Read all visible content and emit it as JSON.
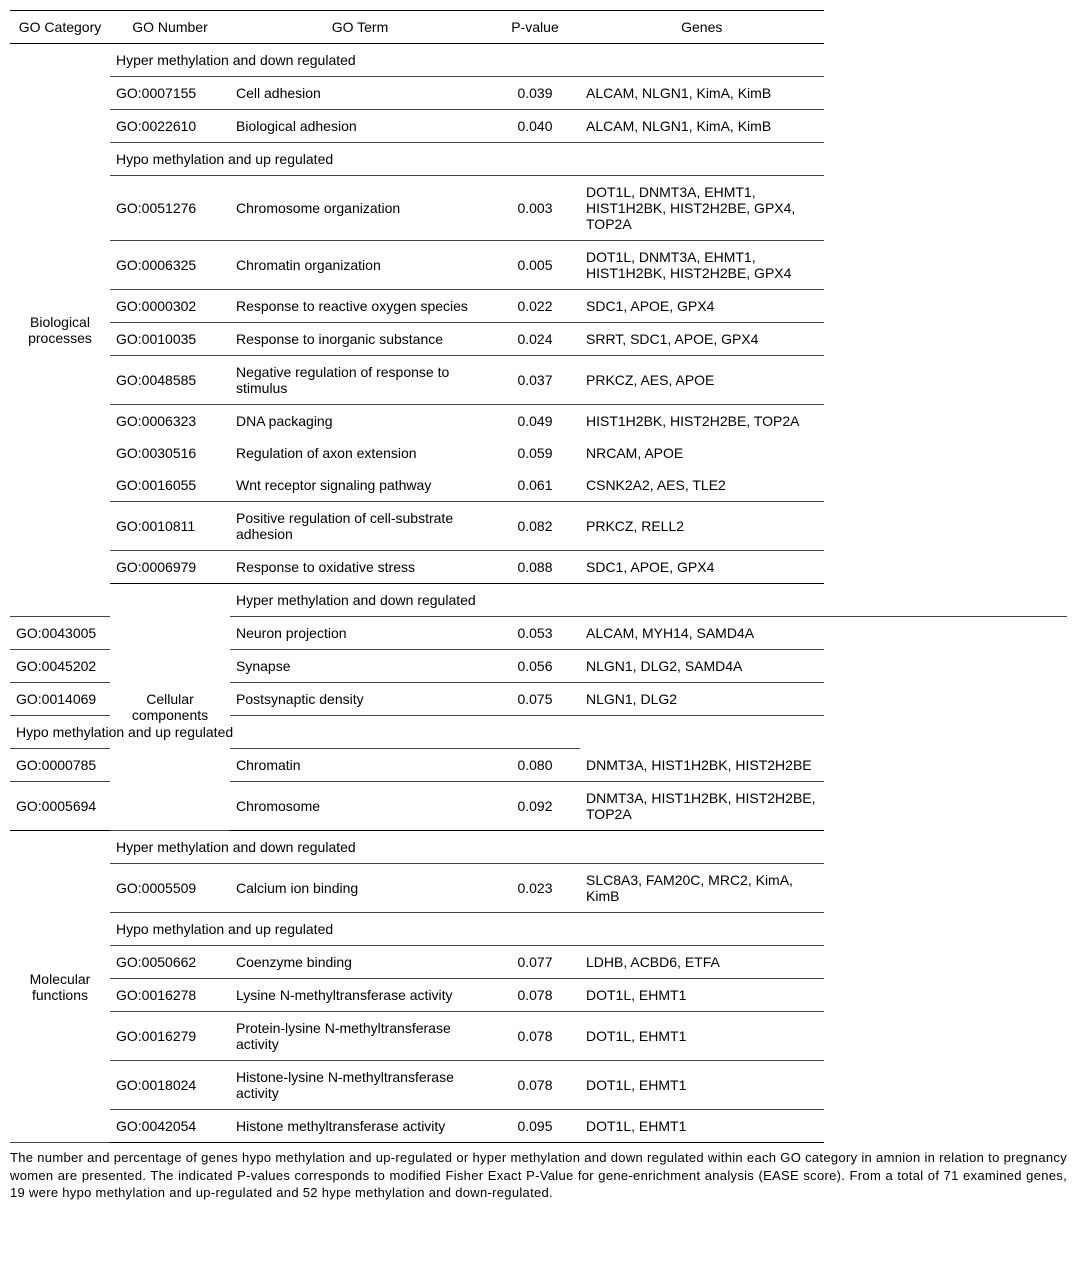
{
  "columns": {
    "c1": "GO Category",
    "c2": "GO Number",
    "c3": "GO Term",
    "c4": "P-value",
    "c5": "Genes"
  },
  "subheaders": {
    "hyper": "Hyper methylation and down regulated",
    "hypo": "Hypo methylation and up regulated"
  },
  "categories": {
    "bio": "Biological processes",
    "cell": "Cellular components",
    "mol": "Molecular functions"
  },
  "rows": {
    "r1": {
      "num": "GO:0007155",
      "term": "Cell adhesion",
      "p": "0.039",
      "genes": "ALCAM, NLGN1, KimA, KimB"
    },
    "r2": {
      "num": "GO:0022610",
      "term": "Biological adhesion",
      "p": "0.040",
      "genes": "ALCAM, NLGN1, KimA, KimB"
    },
    "r3": {
      "num": "GO:0051276",
      "term": "Chromosome organization",
      "p": "0.003",
      "genes": "DOT1L, DNMT3A, EHMT1, HIST1H2BK, HIST2H2BE, GPX4, TOP2A"
    },
    "r4": {
      "num": "GO:0006325",
      "term": "Chromatin organization",
      "p": "0.005",
      "genes": "DOT1L, DNMT3A, EHMT1, HIST1H2BK, HIST2H2BE, GPX4"
    },
    "r5": {
      "num": "GO:0000302",
      "term": "Response to reactive oxygen species",
      "p": "0.022",
      "genes": "SDC1, APOE, GPX4"
    },
    "r6": {
      "num": "GO:0010035",
      "term": "Response to inorganic substance",
      "p": "0.024",
      "genes": "SRRT, SDC1, APOE, GPX4"
    },
    "r7": {
      "num": "GO:0048585",
      "term": "Negative regulation of response to stimulus",
      "p": "0.037",
      "genes": "PRKCZ, AES, APOE"
    },
    "r8": {
      "num": "GO:0006323",
      "term": "DNA packaging",
      "p": "0.049",
      "genes": "HIST1H2BK, HIST2H2BE, TOP2A"
    },
    "r9": {
      "num": "GO:0030516",
      "term": "Regulation of axon extension",
      "p": "0.059",
      "genes": "NRCAM, APOE"
    },
    "r10": {
      "num": "GO:0016055",
      "term": "Wnt receptor signaling pathway",
      "p": "0.061",
      "genes": "CSNK2A2, AES, TLE2"
    },
    "r11": {
      "num": "GO:0010811",
      "term": "Positive regulation of cell-substrate adhesion",
      "p": "0.082",
      "genes": "PRKCZ, RELL2"
    },
    "r12": {
      "num": "GO:0006979",
      "term": "Response to oxidative stress",
      "p": "0.088",
      "genes": "SDC1, APOE, GPX4"
    },
    "r13": {
      "num": "GO:0043005",
      "term": "Neuron projection",
      "p": "0.053",
      "genes": "ALCAM, MYH14, SAMD4A"
    },
    "r14": {
      "num": "GO:0045202",
      "term": "Synapse",
      "p": "0.056",
      "genes": "NLGN1, DLG2, SAMD4A"
    },
    "r15": {
      "num": "GO:0014069",
      "term": "Postsynaptic density",
      "p": "0.075",
      "genes": "NLGN1, DLG2"
    },
    "r16": {
      "num": "GO:0000785",
      "term": "Chromatin",
      "p": "0.080",
      "genes": "DNMT3A, HIST1H2BK, HIST2H2BE"
    },
    "r17": {
      "num": "GO:0005694",
      "term": "Chromosome",
      "p": "0.092",
      "genes": "DNMT3A, HIST1H2BK, HIST2H2BE, TOP2A"
    },
    "r18": {
      "num": "GO:0005509",
      "term": "Calcium ion binding",
      "p": "0.023",
      "genes": "SLC8A3, FAM20C, MRC2, KimA, KimB"
    },
    "r19": {
      "num": "GO:0050662",
      "term": "Coenzyme binding",
      "p": "0.077",
      "genes": "LDHB, ACBD6, ETFA"
    },
    "r20": {
      "num": "GO:0016278",
      "term": "Lysine N-methyltransferase activity",
      "p": "0.078",
      "genes": "DOT1L, EHMT1"
    },
    "r21": {
      "num": "GO:0016279",
      "term": "Protein-lysine N-methyltransferase activity",
      "p": "0.078",
      "genes": "DOT1L, EHMT1"
    },
    "r22": {
      "num": "GO:0018024",
      "term": "Histone-lysine N-methyltransferase activity",
      "p": "0.078",
      "genes": "DOT1L, EHMT1"
    },
    "r23": {
      "num": "GO:0042054",
      "term": "Histone methyltransferase activity",
      "p": "0.095",
      "genes": "DOT1L, EHMT1"
    }
  },
  "footnote": "The number and percentage of genes hypo methylation and up-regulated or hyper methylation and down regulated within each GO category in amnion in relation to pregnancy women are presented. The indicated P-values corresponds to modified Fisher Exact P-Value for gene-enrichment analysis (EASE score). From a total of 71 examined genes, 19 were hypo methylation and up-regulated and 52 hype methylation and down-regulated."
}
